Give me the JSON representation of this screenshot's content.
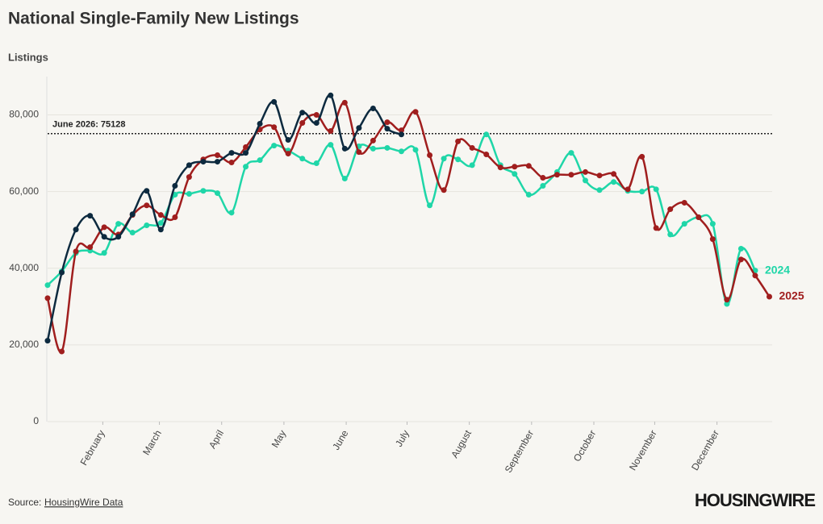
{
  "chart_data": {
    "type": "line",
    "title": "National Single-Family New Listings",
    "y_label": "Listings",
    "source": "Source:",
    "source_link": "HousingWire Data",
    "logo": "HOUSINGWIRE",
    "x": [
      1,
      2,
      3,
      4,
      5,
      6,
      7,
      8,
      9,
      10,
      11,
      12,
      13,
      14,
      15,
      16,
      17,
      18,
      19,
      20,
      21,
      22,
      23,
      24,
      25,
      26,
      27,
      28,
      29,
      30,
      31,
      32,
      33,
      34,
      35,
      36,
      37,
      38,
      39,
      40,
      41,
      42,
      43,
      44,
      45,
      46,
      47,
      48,
      49,
      50,
      51,
      52
    ],
    "xlim": [
      1,
      52.2
    ],
    "xticks": [
      {
        "value": 4.9,
        "label": "February"
      },
      {
        "value": 8.9,
        "label": "March"
      },
      {
        "value": 13.3,
        "label": "April"
      },
      {
        "value": 17.7,
        "label": "May"
      },
      {
        "value": 22.1,
        "label": "June"
      },
      {
        "value": 26.4,
        "label": "July"
      },
      {
        "value": 30.8,
        "label": "August"
      },
      {
        "value": 35.2,
        "label": "September"
      },
      {
        "value": 39.6,
        "label": "October"
      },
      {
        "value": 43.9,
        "label": "November"
      },
      {
        "value": 48.3,
        "label": "December"
      }
    ],
    "ylim": [
      0,
      90000
    ],
    "yticks": [
      0,
      {
        "value": 20000,
        "label": "20,000"
      },
      {
        "value": 40000,
        "label": "40,000"
      },
      {
        "value": 60000,
        "label": "60,000"
      },
      {
        "value": 80000,
        "label": "80,000"
      }
    ],
    "grid": true,
    "reference_line": {
      "value": 75128,
      "label": "June 2026: 75128"
    },
    "series": [
      {
        "name": "2024",
        "color": "#1fd6a8",
        "values": [
          35600,
          39200,
          44000,
          44600,
          44000,
          51600,
          49300,
          51200,
          51800,
          59200,
          59400,
          60200,
          59600,
          54500,
          66500,
          68200,
          72000,
          70700,
          68600,
          67400,
          72200,
          63400,
          71800,
          71200,
          71400,
          70500,
          70900,
          56400,
          68600,
          68400,
          66900,
          74900,
          66900,
          64600,
          59200,
          61500,
          65100,
          70100,
          62900,
          60400,
          62500,
          60200,
          60000,
          60600,
          48800,
          51600,
          53300,
          51600,
          30700,
          45100,
          39400,
          null
        ]
      },
      {
        "name": "2025",
        "color": "#a01e1e",
        "values": [
          32200,
          18300,
          44400,
          45500,
          50700,
          48800,
          53900,
          56400,
          53900,
          53300,
          63800,
          68400,
          69500,
          67600,
          71600,
          76200,
          76800,
          69900,
          77900,
          80000,
          75800,
          83200,
          70300,
          73300,
          78100,
          76000,
          80800,
          69500,
          60400,
          73100,
          71400,
          69700,
          66300,
          66500,
          66700,
          63600,
          64400,
          64400,
          65100,
          64200,
          64600,
          60600,
          69100,
          50500,
          55400,
          57100,
          53300,
          47600,
          31800,
          42300,
          38100,
          32600
        ]
      },
      {
        "color": "#0d2a3f",
        "values": [
          21100,
          38900,
          50100,
          53700,
          48200,
          48200,
          54100,
          60200,
          50100,
          61500,
          66900,
          67800,
          67800,
          70100,
          70100,
          77700,
          83400,
          73500,
          80600,
          77900,
          85100,
          71200,
          76600,
          81700,
          76400,
          74900,
          null,
          null,
          null,
          null,
          null,
          null,
          null,
          null,
          null,
          null,
          null,
          null,
          null,
          null,
          null,
          null,
          null,
          null,
          null,
          null,
          null,
          null,
          null,
          null,
          null,
          null
        ]
      }
    ]
  }
}
